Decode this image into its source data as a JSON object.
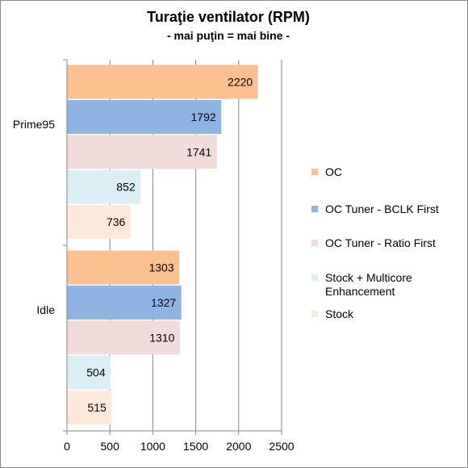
{
  "chart_data": {
    "type": "bar",
    "orientation": "horizontal",
    "title": "Turaţie ventilator (RPM)",
    "subtitle": "- mai puţin = mai bine -",
    "xlabel": "",
    "ylabel": "",
    "xlim": [
      0,
      2500
    ],
    "x_ticks": [
      0,
      500,
      1000,
      1500,
      2000,
      2500
    ],
    "grid": true,
    "legend_position": "right",
    "categories": [
      "Prime95",
      "Idle"
    ],
    "series": [
      {
        "name": "OC",
        "color": "#fac090",
        "values": [
          2220,
          1303
        ]
      },
      {
        "name": "OC Tuner - BCLK First",
        "color": "#8eb4e3",
        "values": [
          1792,
          1327
        ]
      },
      {
        "name": "OC Tuner - Ratio First",
        "color": "#f2dcdb",
        "values": [
          1741,
          1310
        ]
      },
      {
        "name": "Stock + Multicore Enhancement",
        "color": "#dbeef4",
        "values": [
          852,
          504
        ]
      },
      {
        "name": "Stock",
        "color": "#fde9d9",
        "values": [
          736,
          515
        ]
      }
    ]
  }
}
